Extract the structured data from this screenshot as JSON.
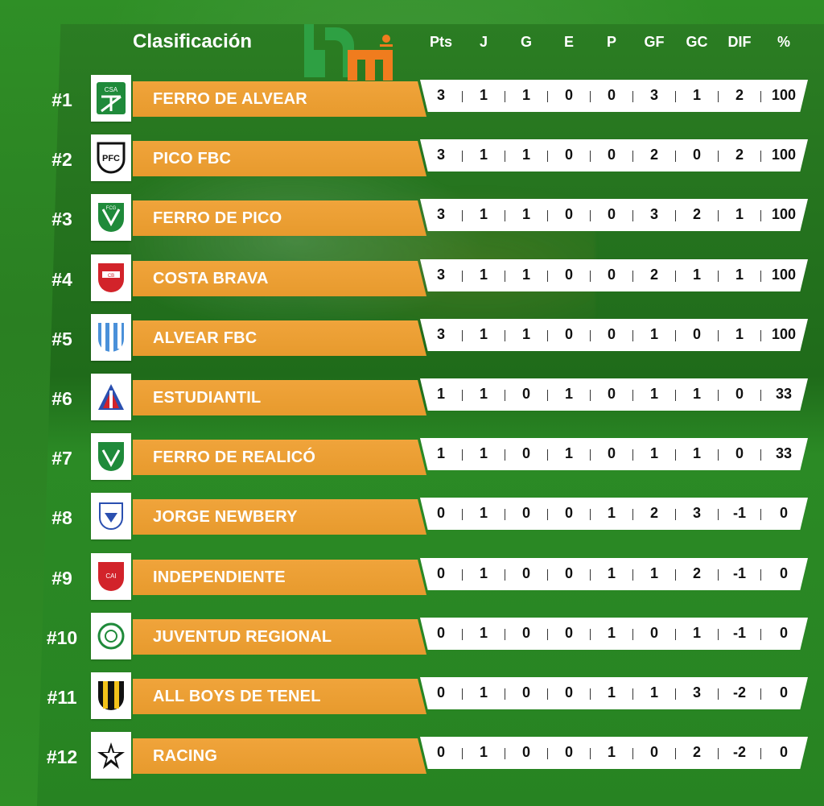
{
  "header": {
    "title": "Clasificación",
    "columns": [
      "Pts",
      "J",
      "G",
      "E",
      "P",
      "GF",
      "GC",
      "DIF",
      "%"
    ]
  },
  "logo": {
    "name": "logo",
    "colors": {
      "green": "#2ea043",
      "orange": "#f07c1e"
    }
  },
  "colors": {
    "name_bar": "#ef9f32",
    "background": "#2c8a22",
    "stats_bar": "#ffffff"
  },
  "teams": [
    {
      "rank": "#1",
      "name": "FERRO DE ALVEAR",
      "crest": "ferro-alvear-crest",
      "stats": [
        "3",
        "1",
        "1",
        "0",
        "0",
        "3",
        "1",
        "2",
        "100"
      ]
    },
    {
      "rank": "#2",
      "name": "PICO FBC",
      "crest": "pico-fbc-crest",
      "stats": [
        "3",
        "1",
        "1",
        "0",
        "0",
        "2",
        "0",
        "2",
        "100"
      ]
    },
    {
      "rank": "#3",
      "name": "FERRO DE PICO",
      "crest": "ferro-pico-crest",
      "stats": [
        "3",
        "1",
        "1",
        "0",
        "0",
        "3",
        "2",
        "1",
        "100"
      ]
    },
    {
      "rank": "#4",
      "name": "COSTA BRAVA",
      "crest": "costa-brava-crest",
      "stats": [
        "3",
        "1",
        "1",
        "0",
        "0",
        "2",
        "1",
        "1",
        "100"
      ]
    },
    {
      "rank": "#5",
      "name": "ALVEAR FBC",
      "crest": "alvear-fbc-crest",
      "stats": [
        "3",
        "1",
        "1",
        "0",
        "0",
        "1",
        "0",
        "1",
        "100"
      ]
    },
    {
      "rank": "#6",
      "name": "ESTUDIANTIL",
      "crest": "estudiantil-crest",
      "stats": [
        "1",
        "1",
        "0",
        "1",
        "0",
        "1",
        "1",
        "0",
        "33"
      ]
    },
    {
      "rank": "#7",
      "name": "FERRO DE REALICÓ",
      "crest": "ferro-realico-crest",
      "stats": [
        "1",
        "1",
        "0",
        "1",
        "0",
        "1",
        "1",
        "0",
        "33"
      ]
    },
    {
      "rank": "#8",
      "name": "JORGE NEWBERY",
      "crest": "jorge-newbery-crest",
      "stats": [
        "0",
        "1",
        "0",
        "0",
        "1",
        "2",
        "3",
        "-1",
        "0"
      ]
    },
    {
      "rank": "#9",
      "name": "INDEPENDIENTE",
      "crest": "independiente-crest",
      "stats": [
        "0",
        "1",
        "0",
        "0",
        "1",
        "1",
        "2",
        "-1",
        "0"
      ]
    },
    {
      "rank": "#10",
      "name": "JUVENTUD REGIONAL",
      "crest": "juventud-regional-crest",
      "stats": [
        "0",
        "1",
        "0",
        "0",
        "1",
        "0",
        "1",
        "-1",
        "0"
      ]
    },
    {
      "rank": "#11",
      "name": "ALL BOYS DE TENEL",
      "crest": "all-boys-crest",
      "stats": [
        "0",
        "1",
        "0",
        "0",
        "1",
        "1",
        "3",
        "-2",
        "0"
      ]
    },
    {
      "rank": "#12",
      "name": "RACING",
      "crest": "racing-crest",
      "stats": [
        "0",
        "1",
        "0",
        "0",
        "1",
        "0",
        "2",
        "-2",
        "0"
      ]
    }
  ]
}
